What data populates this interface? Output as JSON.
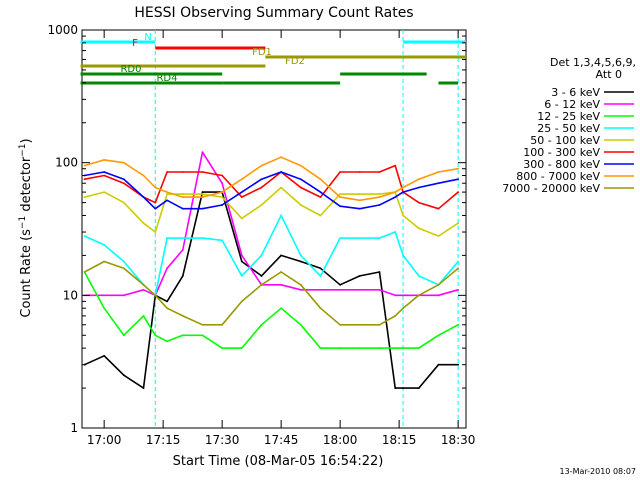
{
  "chart_data": {
    "type": "line",
    "title": "HESSI Observing Summary Count Rates",
    "xlabel": "Start Time (08-Mar-05 16:54:22)",
    "ylabel": "Count Rate (s⁻¹ detector⁻¹)",
    "xlim": [
      "16:54:22",
      "18:32:00"
    ],
    "ylim": [
      1,
      1000
    ],
    "y_scale": "log",
    "x_ticks": [
      "17:00",
      "17:15",
      "17:30",
      "17:45",
      "18:00",
      "18:15",
      "18:30"
    ],
    "y_ticks": [
      "1",
      "10",
      "100",
      "1000"
    ],
    "legend_title": [
      "Det 1,3,4,5,6,9,",
      "Att 0"
    ],
    "legend_position": "right",
    "timestamp": "13-Mar-2010 08:07",
    "series": [
      {
        "name": "3 - 6 keV",
        "color": "#000000",
        "t": [
          "16:55",
          "17:00",
          "17:05",
          "17:10",
          "17:13",
          "17:16",
          "17:20",
          "17:25",
          "17:30",
          "17:35",
          "17:40",
          "17:45",
          "17:50",
          "17:55",
          "18:00",
          "18:05",
          "18:10",
          "18:14",
          "18:16",
          "18:20",
          "18:25",
          "18:30"
        ],
        "values": [
          3,
          3.5,
          2.5,
          2,
          10,
          9,
          14,
          60,
          60,
          18,
          14,
          20,
          18,
          16,
          12,
          14,
          15,
          2,
          2,
          2,
          3,
          3
        ]
      },
      {
        "name": "6 - 12 keV",
        "color": "#ff00ff",
        "t": [
          "16:55",
          "17:00",
          "17:05",
          "17:10",
          "17:13",
          "17:16",
          "17:20",
          "17:25",
          "17:30",
          "17:35",
          "17:40",
          "17:45",
          "17:50",
          "17:55",
          "18:00",
          "18:05",
          "18:10",
          "18:14",
          "18:16",
          "18:20",
          "18:25",
          "18:30"
        ],
        "values": [
          10,
          10,
          10,
          11,
          10,
          16,
          22,
          120,
          70,
          20,
          12,
          12,
          11,
          11,
          11,
          11,
          11,
          10,
          10,
          10,
          10,
          11
        ]
      },
      {
        "name": "12 - 25 keV",
        "color": "#00ff00",
        "t": [
          "16:55",
          "17:00",
          "17:05",
          "17:10",
          "17:13",
          "17:16",
          "17:20",
          "17:25",
          "17:30",
          "17:35",
          "17:40",
          "17:45",
          "17:50",
          "17:55",
          "18:00",
          "18:05",
          "18:10",
          "18:14",
          "18:16",
          "18:20",
          "18:25",
          "18:30"
        ],
        "values": [
          15,
          8,
          5,
          7,
          5,
          4.5,
          5,
          5,
          4,
          4,
          6,
          8,
          6,
          4,
          4,
          4,
          4,
          4,
          4,
          4,
          5,
          6
        ]
      },
      {
        "name": "25 - 50 keV",
        "color": "#00ffff",
        "t": [
          "16:55",
          "17:00",
          "17:05",
          "17:10",
          "17:13",
          "17:16",
          "17:20",
          "17:25",
          "17:30",
          "17:35",
          "17:40",
          "17:45",
          "17:50",
          "17:55",
          "18:00",
          "18:05",
          "18:10",
          "18:14",
          "18:16",
          "18:20",
          "18:25",
          "18:30"
        ],
        "values": [
          28,
          24,
          18,
          12,
          10,
          27,
          27,
          27,
          26,
          14,
          20,
          40,
          20,
          14,
          27,
          27,
          27,
          30,
          20,
          14,
          12,
          18
        ]
      },
      {
        "name": "50 - 100 keV",
        "color": "#cccc00",
        "t": [
          "16:55",
          "17:00",
          "17:05",
          "17:10",
          "17:13",
          "17:16",
          "17:20",
          "17:25",
          "17:30",
          "17:35",
          "17:40",
          "17:45",
          "17:50",
          "17:55",
          "18:00",
          "18:05",
          "18:10",
          "18:14",
          "18:16",
          "18:20",
          "18:25",
          "18:30"
        ],
        "values": [
          55,
          60,
          50,
          35,
          30,
          58,
          58,
          58,
          55,
          38,
          48,
          65,
          48,
          40,
          58,
          58,
          58,
          60,
          40,
          32,
          28,
          35
        ]
      },
      {
        "name": "100 - 300 keV",
        "color": "#ff0000",
        "t": [
          "16:55",
          "17:00",
          "17:05",
          "17:10",
          "17:13",
          "17:16",
          "17:20",
          "17:25",
          "17:30",
          "17:35",
          "17:40",
          "17:45",
          "17:50",
          "17:55",
          "18:00",
          "18:05",
          "18:10",
          "18:14",
          "18:16",
          "18:20",
          "18:25",
          "18:30"
        ],
        "values": [
          75,
          80,
          70,
          55,
          50,
          85,
          85,
          85,
          80,
          55,
          65,
          85,
          65,
          55,
          85,
          85,
          85,
          95,
          60,
          50,
          45,
          60
        ]
      },
      {
        "name": "300 - 800 keV",
        "color": "#0000ff",
        "t": [
          "16:55",
          "17:00",
          "17:05",
          "17:10",
          "17:13",
          "17:16",
          "17:20",
          "17:25",
          "17:30",
          "17:35",
          "17:40",
          "17:45",
          "17:50",
          "17:55",
          "18:00",
          "18:05",
          "18:10",
          "18:14",
          "18:16",
          "18:20",
          "18:25",
          "18:30"
        ],
        "values": [
          80,
          85,
          75,
          55,
          45,
          52,
          45,
          45,
          48,
          60,
          75,
          85,
          75,
          60,
          47,
          45,
          48,
          55,
          60,
          65,
          70,
          75
        ]
      },
      {
        "name": "800 - 7000 keV",
        "color": "#ff9900",
        "t": [
          "16:55",
          "17:00",
          "17:05",
          "17:10",
          "17:13",
          "17:16",
          "17:20",
          "17:25",
          "17:30",
          "17:35",
          "17:40",
          "17:45",
          "17:50",
          "17:55",
          "18:00",
          "18:05",
          "18:10",
          "18:14",
          "18:16",
          "18:20",
          "18:25",
          "18:30"
        ],
        "values": [
          95,
          105,
          100,
          80,
          65,
          60,
          55,
          55,
          60,
          75,
          95,
          110,
          95,
          75,
          55,
          52,
          55,
          60,
          65,
          75,
          85,
          90
        ]
      },
      {
        "name": "7000 - 20000 keV",
        "color": "#999900",
        "t": [
          "16:55",
          "17:00",
          "17:05",
          "17:10",
          "17:13",
          "17:16",
          "17:20",
          "17:25",
          "17:30",
          "17:35",
          "17:40",
          "17:45",
          "17:50",
          "17:55",
          "18:00",
          "18:05",
          "18:10",
          "18:14",
          "18:16",
          "18:20",
          "18:25",
          "18:30"
        ],
        "values": [
          15,
          18,
          16,
          12,
          10,
          8,
          7,
          6,
          6,
          9,
          12,
          15,
          12,
          8,
          6,
          6,
          6,
          7,
          8,
          10,
          12,
          16
        ]
      }
    ],
    "flag_bars": [
      {
        "label": "N",
        "color": "#00ffff",
        "segments": [
          [
            "16:54",
            "17:13"
          ],
          [
            "18:16",
            "18:32"
          ]
        ]
      },
      {
        "label": "F",
        "color": "#ff0000",
        "segments": [
          [
            "17:13",
            "17:41"
          ]
        ]
      },
      {
        "label": "FD1",
        "color": "#999900",
        "segments": [
          [
            "17:41",
            "18:32"
          ]
        ]
      },
      {
        "label": "FD2",
        "color": "#999900",
        "segments": [
          [
            "16:54",
            "17:41"
          ]
        ]
      },
      {
        "label": "RD0",
        "color": "#008800",
        "segments": [
          [
            "16:54",
            "17:30"
          ],
          [
            "18:00",
            "18:22"
          ]
        ]
      },
      {
        "label": "RD4",
        "color": "#008800",
        "segments": [
          [
            "16:54",
            "17:30"
          ],
          [
            "17:30",
            "18:00"
          ],
          [
            "18:25",
            "18:30"
          ]
        ]
      }
    ],
    "vlines": [
      "17:13",
      "18:16",
      "18:30"
    ]
  }
}
